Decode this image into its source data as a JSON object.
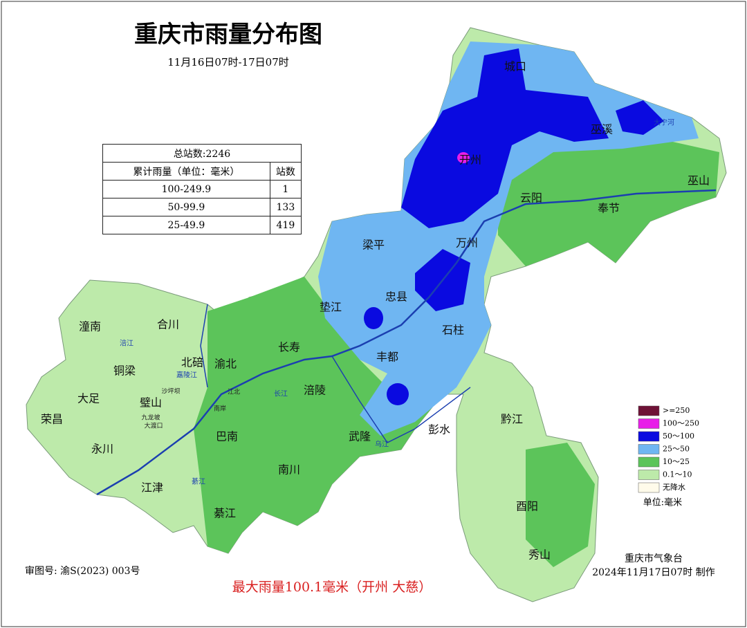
{
  "header": {
    "title": "重庆市雨量分布图",
    "subtitle": "11月16日07时-17日07时"
  },
  "table": {
    "caption": "总站数:2246",
    "columns": [
      "累计雨量（单位：毫米）",
      "站数"
    ],
    "rows": [
      [
        "100-249.9",
        "1"
      ],
      [
        "50-99.9",
        "133"
      ],
      [
        "25-49.9",
        "419"
      ]
    ]
  },
  "legend": {
    "items": [
      {
        "label": ">=250",
        "color": "#6e1236"
      },
      {
        "label": "100～250",
        "color": "#e81ee8"
      },
      {
        "label": "50～100",
        "color": "#0a0ae0"
      },
      {
        "label": "25～50",
        "color": "#6fb6f2"
      },
      {
        "label": "10～25",
        "color": "#5cc45a"
      },
      {
        "label": "0.1～10",
        "color": "#bdeaaa"
      },
      {
        "label": "无降水",
        "color": "#fffbea"
      }
    ],
    "unit": "单位:毫米"
  },
  "districts": [
    "城口",
    "巫溪",
    "开州",
    "云阳",
    "巫山",
    "奉节",
    "梁平",
    "万州",
    "忠县",
    "垫江",
    "石柱",
    "长寿",
    "丰都",
    "涪陵",
    "武隆",
    "彭水",
    "黔江",
    "南川",
    "巴南",
    "綦江",
    "江津",
    "永川",
    "荣昌",
    "大足",
    "铜梁",
    "璧山",
    "潼南",
    "合川",
    "北碚",
    "渝北",
    "酉阳",
    "秀山",
    "沙坪坝",
    "九龙坡",
    "大渡口",
    "江北",
    "南岸"
  ],
  "rivers": [
    "嘉陵江",
    "涪江",
    "长江",
    "乌江",
    "綦江",
    "大宁河"
  ],
  "footer": {
    "approval": "审图号: 渝S(2023) 003号",
    "max_rain": "最大雨量100.1毫米（开州 大慈）",
    "agency": "重庆市气象台",
    "time": "2024年11月17日07时 制作"
  }
}
